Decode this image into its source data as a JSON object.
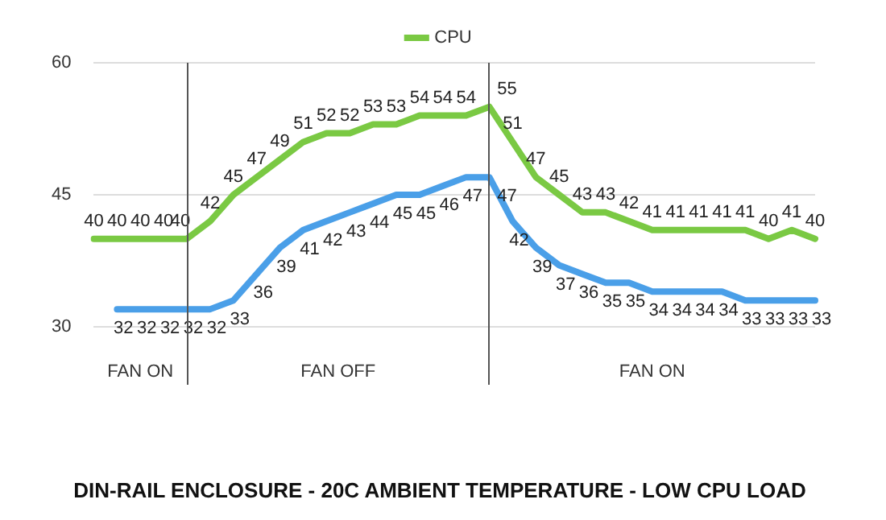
{
  "chart_data": {
    "type": "line",
    "title": "DIN-RAIL ENCLOSURE - 20C AMBIENT TEMPERATURE - LOW CPU LOAD",
    "categories": [
      null,
      null,
      null,
      null,
      null,
      null,
      null,
      null,
      null,
      null,
      null,
      null,
      null,
      null,
      null,
      null,
      null,
      null,
      null,
      null,
      null,
      null,
      null,
      null,
      null,
      null,
      null,
      null,
      null,
      null,
      null,
      null
    ],
    "ylim": [
      30,
      60
    ],
    "yticks": [
      30,
      45,
      60
    ],
    "grid": "y",
    "legend": "top",
    "data_labels": true,
    "marker": "none",
    "line_style": "solid",
    "series": [
      {
        "color": "#4a9fe8",
        "values": [
          null,
          32,
          32,
          32,
          32,
          32,
          33,
          36,
          39,
          41,
          42,
          43,
          44,
          45,
          45,
          46,
          47,
          47,
          42,
          39,
          37,
          36,
          35,
          35,
          34,
          34,
          34,
          34,
          33,
          33,
          33,
          33
        ]
      },
      {
        "name": "CPU",
        "color": "#7ac943",
        "values": [
          40,
          40,
          40,
          40,
          40,
          42,
          45,
          47,
          49,
          51,
          52,
          52,
          53,
          53,
          54,
          54,
          54,
          55,
          51,
          47,
          45,
          43,
          43,
          42,
          41,
          41,
          41,
          41,
          41,
          40,
          41,
          40
        ]
      }
    ],
    "annotations": [
      "FAN ON",
      "FAN OFF",
      "FAN ON"
    ]
  }
}
